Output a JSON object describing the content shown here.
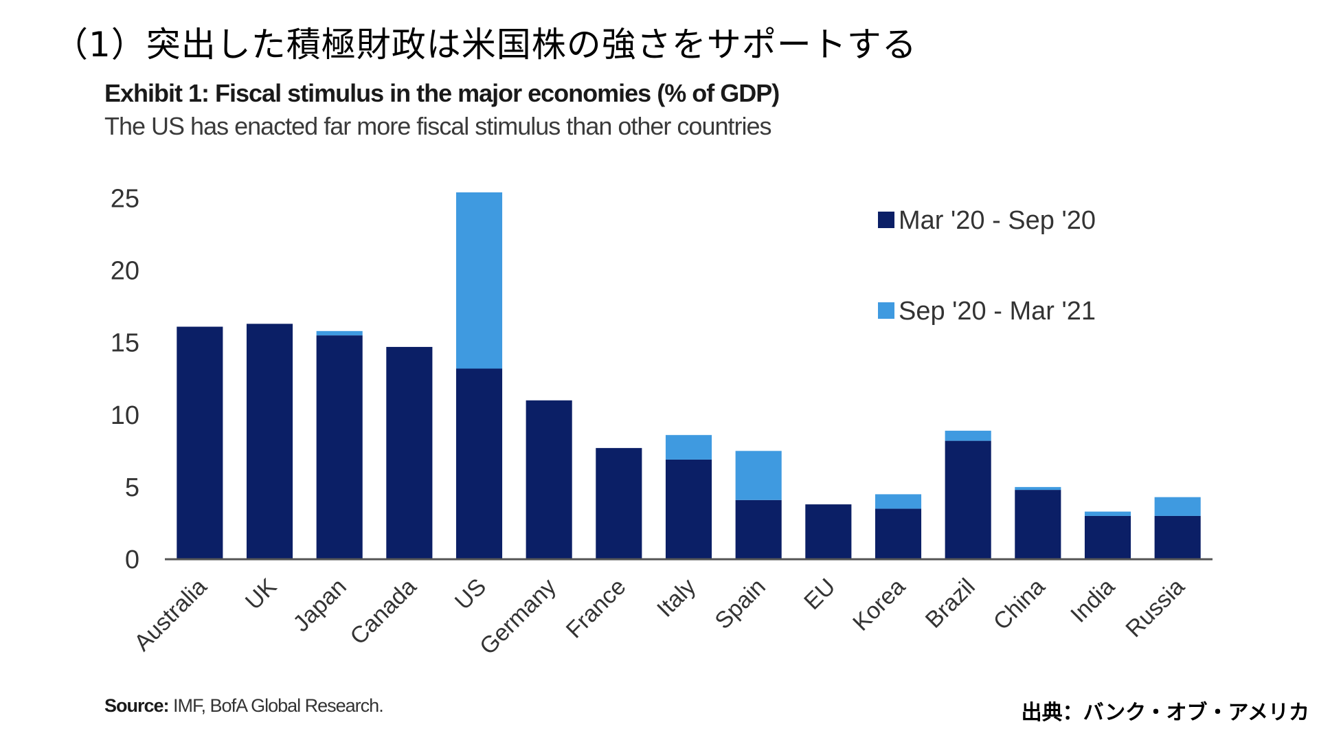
{
  "page": {
    "heading": "（1）突出した積極財政は米国株の強さをサポートする",
    "credit": "出典：バンク・オブ・アメリカ"
  },
  "chart_data": {
    "type": "bar",
    "stacked": true,
    "title": "Exhibit 1: Fiscal stimulus in the major economies (% of GDP)",
    "subtitle": "The US has enacted far more fiscal stimulus than other countries",
    "categories": [
      "Australia",
      "UK",
      "Japan",
      "Canada",
      "US",
      "Germany",
      "France",
      "Italy",
      "Spain",
      "EU",
      "Korea",
      "Brazil",
      "China",
      "India",
      "Russia"
    ],
    "series": [
      {
        "name": "Mar '20 - Sep '20",
        "color": "#0b1f66",
        "values": [
          16.1,
          16.3,
          15.5,
          14.7,
          13.2,
          11.0,
          7.7,
          6.9,
          4.1,
          3.8,
          3.5,
          8.2,
          4.8,
          3.0,
          3.0
        ]
      },
      {
        "name": "Sep '20 - Mar '21",
        "color": "#3f9ae0",
        "values": [
          0,
          0,
          0.3,
          0,
          12.2,
          0,
          0,
          1.7,
          3.4,
          0,
          1.0,
          0.7,
          0.2,
          0.3,
          1.3
        ]
      }
    ],
    "yticks": [
      0,
      5,
      10,
      15,
      20,
      25
    ],
    "ylim": [
      0,
      25.4
    ],
    "legend_position": "top-right",
    "grid": false,
    "source_label": "Source:",
    "source_text": "IMF, BofA Global Research."
  }
}
